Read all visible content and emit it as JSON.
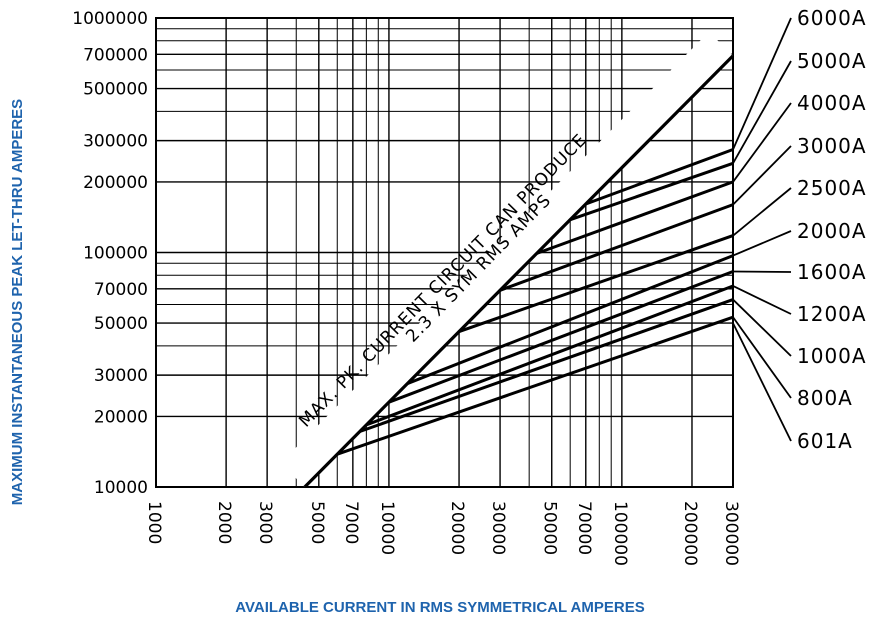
{
  "chart_data": {
    "type": "line",
    "scale": {
      "x": "log",
      "y": "log"
    },
    "xlim": [
      1000,
      300000
    ],
    "ylim": [
      10000,
      1000000
    ],
    "grid": true,
    "xlabel": "AVAILABLE CURRENT IN RMS SYMMETRICAL AMPERES",
    "ylabel": "MAXIMUM INSTANTANEOUS PEAK LET-THRU AMPERES",
    "x_ticks": [
      "1000",
      "2000",
      "3000",
      "5000",
      "7000",
      "10000",
      "20000",
      "30000",
      "50000",
      "70000",
      "100000",
      "200000",
      "300000"
    ],
    "y_ticks": [
      "10000",
      "20000",
      "30000",
      "50000",
      "70000",
      "100000",
      "200000",
      "300000",
      "500000",
      "700000",
      "1000000"
    ],
    "x_tick_values": [
      1000,
      2000,
      3000,
      5000,
      7000,
      10000,
      20000,
      30000,
      50000,
      70000,
      100000,
      200000,
      300000
    ],
    "y_tick_values": [
      10000,
      20000,
      30000,
      50000,
      70000,
      100000,
      200000,
      300000,
      500000,
      700000,
      1000000
    ],
    "annotation": {
      "line1": "MAX. PK. CURRENT CIRCUIT CAN PRODUCE",
      "line2": "2.3 X SYM RMS AMPS"
    },
    "max_peak_line": {
      "factor": 2.3,
      "x": [
        4350,
        300000
      ]
    },
    "series": [
      {
        "name": "6000A",
        "x": [
          70000,
          300000
        ],
        "y": [
          161000,
          275000
        ]
      },
      {
        "name": "5000A",
        "x": [
          60000,
          300000
        ],
        "y": [
          138000,
          240000
        ]
      },
      {
        "name": "4000A",
        "x": [
          43000,
          300000
        ],
        "y": [
          99000,
          200000
        ]
      },
      {
        "name": "3000A",
        "x": [
          30000,
          300000
        ],
        "y": [
          69000,
          160000
        ]
      },
      {
        "name": "2500A",
        "x": [
          20000,
          300000
        ],
        "y": [
          46000,
          118000
        ]
      },
      {
        "name": "2000A",
        "x": [
          12000,
          300000
        ],
        "y": [
          27600,
          97000
        ]
      },
      {
        "name": "1600A",
        "x": [
          10000,
          300000
        ],
        "y": [
          23000,
          83000
        ]
      },
      {
        "name": "1200A",
        "x": [
          8000,
          300000
        ],
        "y": [
          18400,
          72000
        ]
      },
      {
        "name": "1000A",
        "x": [
          7500,
          300000
        ],
        "y": [
          17250,
          63000
        ]
      },
      {
        "name": "800A",
        "x": [
          6000,
          300000
        ],
        "y": [
          13800,
          53000
        ]
      }
    ],
    "extra_labels": [
      "601A"
    ]
  }
}
